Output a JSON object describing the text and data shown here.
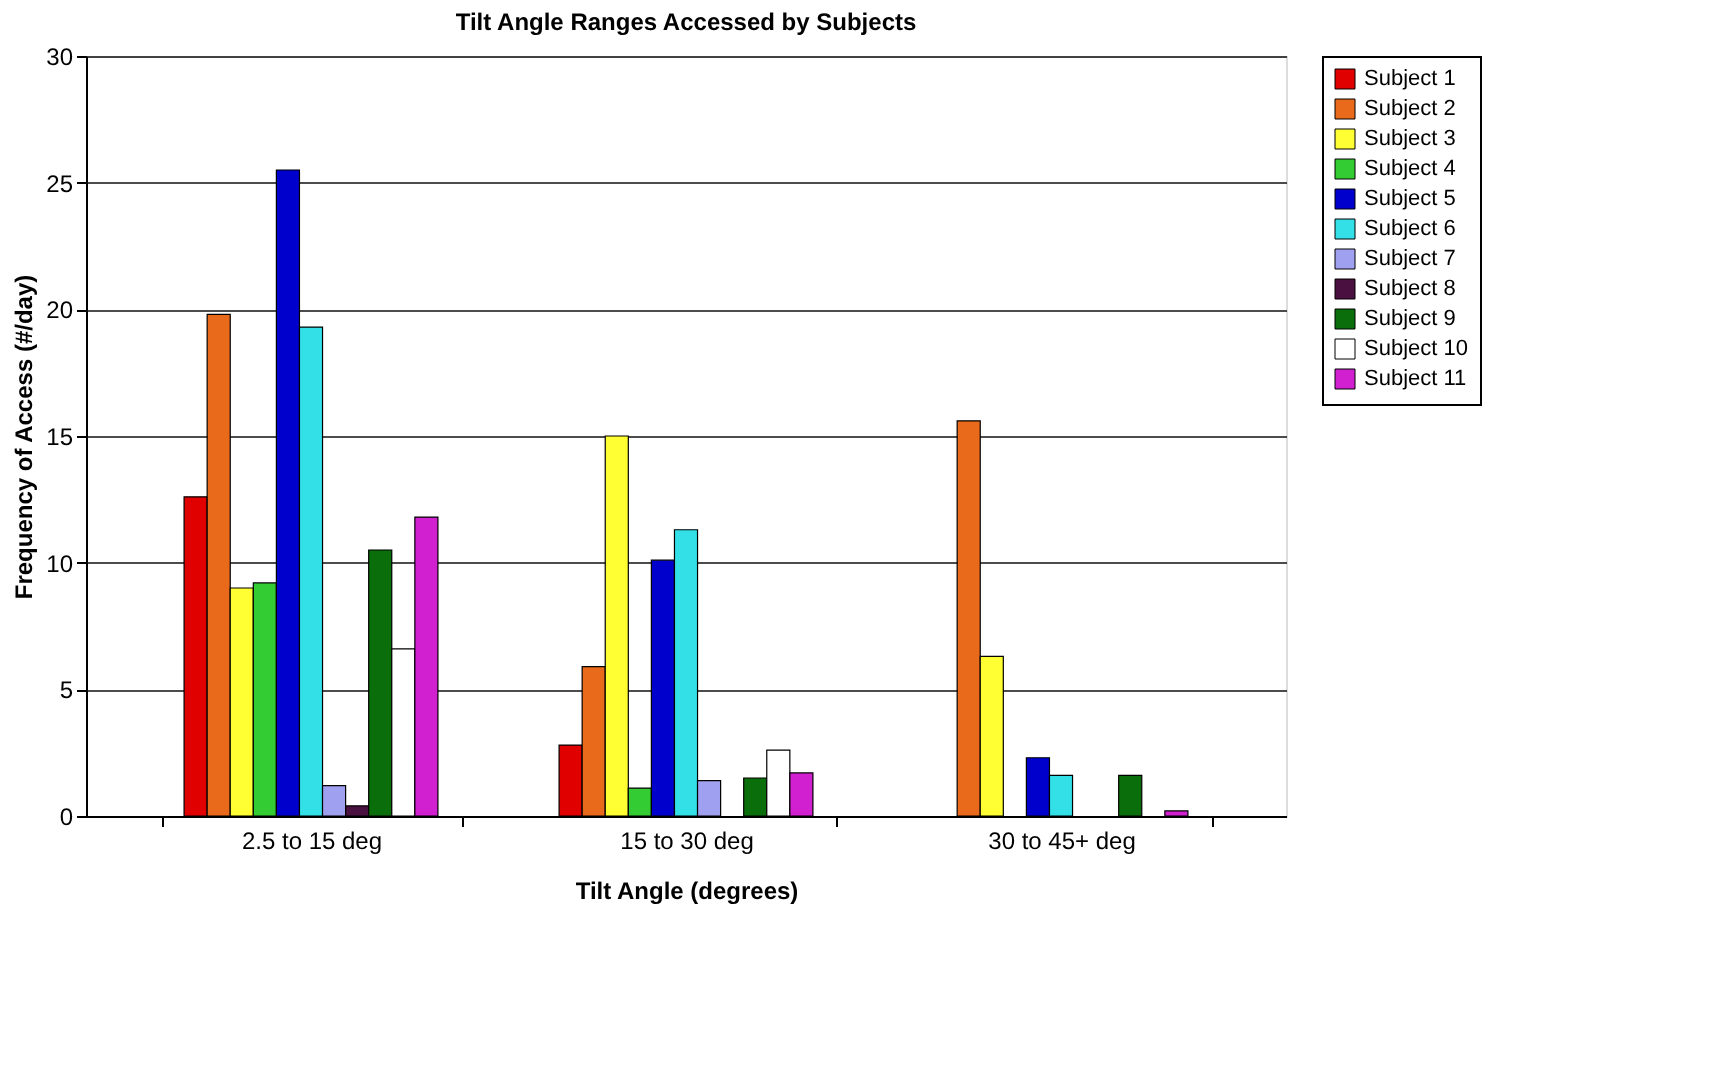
{
  "chart_data": {
    "type": "bar",
    "title": "Tilt Angle Ranges Accessed by Subjects",
    "xlabel": "Tilt Angle (degrees)",
    "ylabel": "Frequency of Access (#/day)",
    "categories": [
      "2.5 to 15 deg",
      "15 to 30 deg",
      "30 to 45+ deg"
    ],
    "series": [
      {
        "name": "Subject 1",
        "color": "#e00000",
        "values": [
          12.6,
          2.8,
          null
        ]
      },
      {
        "name": "Subject 2",
        "color": "#e86a1a",
        "values": [
          19.8,
          5.9,
          15.6
        ]
      },
      {
        "name": "Subject 3",
        "color": "#ffff33",
        "values": [
          9.0,
          15.0,
          6.3
        ]
      },
      {
        "name": "Subject 4",
        "color": "#33cc33",
        "values": [
          9.2,
          1.1,
          null
        ]
      },
      {
        "name": "Subject 5",
        "color": "#0000cc",
        "values": [
          25.5,
          10.1,
          2.3
        ]
      },
      {
        "name": "Subject 6",
        "color": "#33e0e8",
        "values": [
          19.3,
          11.3,
          1.6
        ]
      },
      {
        "name": "Subject 7",
        "color": "#a0a0f0",
        "values": [
          1.2,
          1.4,
          null
        ]
      },
      {
        "name": "Subject 8",
        "color": "#4a1040",
        "values": [
          0.4,
          null,
          null
        ]
      },
      {
        "name": "Subject 9",
        "color": "#0a6e0a",
        "values": [
          10.5,
          1.5,
          1.6
        ]
      },
      {
        "name": "Subject 10",
        "color": "#ffffff",
        "values": [
          6.6,
          2.6,
          null
        ]
      },
      {
        "name": "Subject 11",
        "color": "#d020d0",
        "values": [
          11.8,
          1.7,
          0.2
        ]
      }
    ],
    "ylim": [
      0,
      30
    ],
    "yticks": [
      0,
      5,
      10,
      15,
      20,
      25,
      30
    ],
    "grid": "y",
    "legend": "right"
  }
}
